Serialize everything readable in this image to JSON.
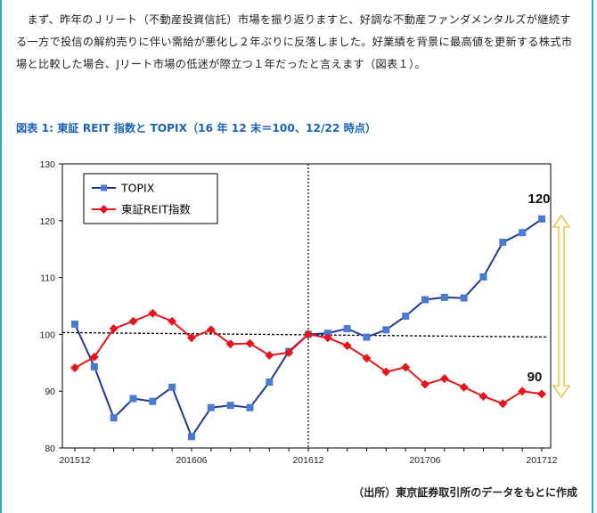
{
  "intro_text": "　まず、昨年のＪリート（不動産投資信託）市場を振り返りますと、好調な不動産ファンダメンタルズが継続する一方で投信の解約売りに伴い需給が悪化し２年ぶりに反落しました。好業績を背景に最高値を更新する株式市場と比較した場合、Jリート市場の低迷が際立つ１年だったと言えます（図表１）。",
  "figure_title": "図表 1: 東証 REIT 指数と TOPIX（16 年 12 末＝100、12/22 時点）",
  "source_note": "（出所）東京証券取引所のデータをもとに作成",
  "colors": {
    "topix": "#1f3a93",
    "reit": "#e8141b",
    "arrow": "#d4c247",
    "frame": "#2fa3d6"
  },
  "chart_data": {
    "type": "line",
    "x": [
      "201512",
      "201601",
      "201602",
      "201603",
      "201604",
      "201605",
      "201606",
      "201607",
      "201608",
      "201609",
      "201610",
      "201611",
      "201612",
      "201701",
      "201702",
      "201703",
      "201704",
      "201705",
      "201706",
      "201707",
      "201708",
      "201709",
      "201710",
      "201711",
      "201712"
    ],
    "x_tick_labels": [
      "201512",
      "201606",
      "201612",
      "201706",
      "201712"
    ],
    "series": [
      {
        "name": "TOPIX",
        "values": [
          101.8,
          94.3,
          85.3,
          88.7,
          88.2,
          90.7,
          82.0,
          87.1,
          87.5,
          87.1,
          91.6,
          97.0,
          100.0,
          100.2,
          101.0,
          99.5,
          100.8,
          103.2,
          106.1,
          106.5,
          106.4,
          110.1,
          116.2,
          117.9,
          120.3
        ]
      },
      {
        "name": "東証REIT指数",
        "values": [
          94.1,
          96.0,
          101.0,
          102.3,
          103.7,
          102.3,
          99.4,
          100.8,
          98.3,
          98.4,
          96.3,
          96.8,
          100.0,
          99.4,
          98.0,
          95.8,
          93.4,
          94.2,
          91.2,
          92.2,
          90.7,
          89.1,
          87.8,
          90.0,
          89.5
        ]
      }
    ],
    "ylim": [
      80,
      130
    ],
    "yticks": [
      80,
      90,
      100,
      110,
      120,
      130
    ],
    "reference_line": 100,
    "vertical_marker": "201612",
    "annotations": [
      "120",
      "90"
    ],
    "grid": false,
    "legend": "top-left"
  }
}
